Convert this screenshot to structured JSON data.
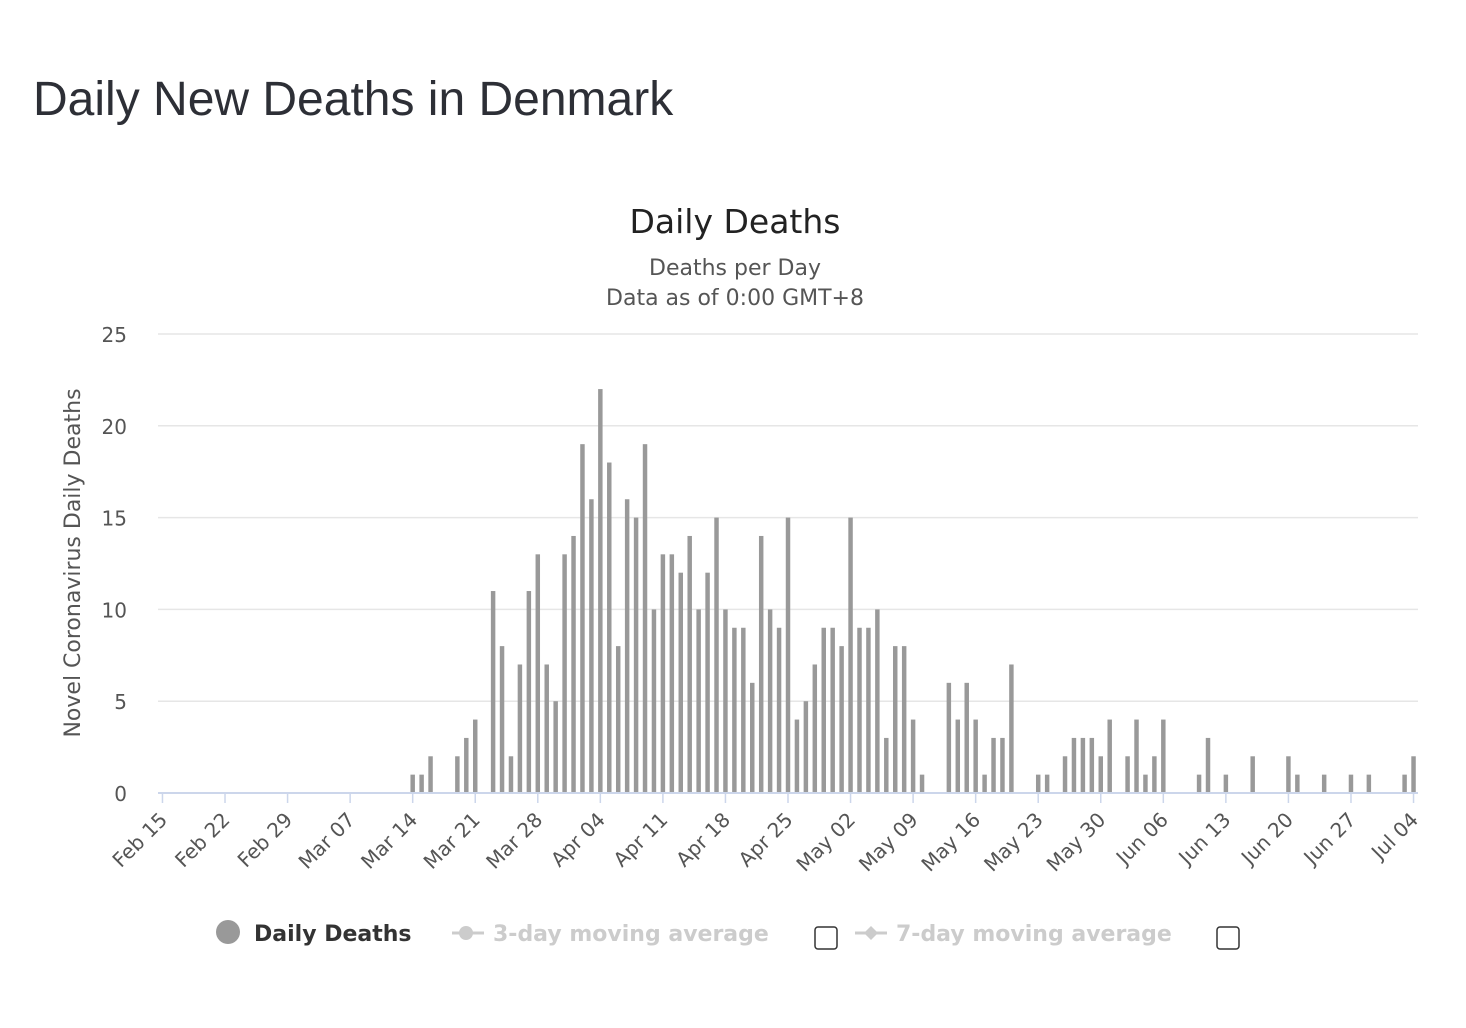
{
  "page": {
    "title": "Daily New Deaths in Denmark"
  },
  "chart_data": {
    "type": "bar",
    "title": "Daily Deaths",
    "subtitle": [
      "Deaths per Day",
      "Data as of 0:00 GMT+8"
    ],
    "ylabel": "Novel Coronavirus Daily Deaths",
    "xlabel": "",
    "ylim": [
      0,
      25
    ],
    "yticks": [
      "0",
      "5",
      "10",
      "15",
      "20",
      "25"
    ],
    "xtick_labels": [
      "Feb 15",
      "Feb 22",
      "Feb 29",
      "Mar 07",
      "Mar 14",
      "Mar 21",
      "Mar 28",
      "Apr 04",
      "Apr 11",
      "Apr 18",
      "Apr 25",
      "May 02",
      "May 09",
      "May 16",
      "May 23",
      "May 30",
      "Jun 06",
      "Jun 13",
      "Jun 20",
      "Jun 27",
      "Jul 04"
    ],
    "start_date": "Feb 15",
    "grid": true,
    "legend_position": "bottom",
    "colors": {
      "bar": "#999999",
      "grid": "#e6e6e6",
      "axis": "#ccd6eb",
      "legend_inactive": "#cccccc"
    },
    "series": [
      {
        "name": "Daily Deaths",
        "values": [
          0,
          0,
          0,
          0,
          0,
          0,
          0,
          0,
          0,
          0,
          0,
          0,
          0,
          0,
          0,
          0,
          0,
          0,
          0,
          0,
          0,
          0,
          0,
          0,
          0,
          0,
          0,
          0,
          1,
          1,
          2,
          0,
          0,
          2,
          3,
          4,
          0,
          11,
          8,
          2,
          7,
          11,
          13,
          7,
          5,
          13,
          14,
          19,
          16,
          22,
          18,
          8,
          16,
          15,
          19,
          10,
          13,
          13,
          12,
          14,
          10,
          12,
          15,
          10,
          9,
          9,
          6,
          14,
          10,
          9,
          15,
          4,
          5,
          7,
          9,
          9,
          8,
          15,
          9,
          9,
          10,
          3,
          8,
          8,
          4,
          1,
          0,
          0,
          6,
          4,
          6,
          4,
          1,
          3,
          3,
          7,
          0,
          0,
          1,
          1,
          0,
          2,
          3,
          3,
          3,
          2,
          4,
          0,
          2,
          4,
          1,
          2,
          4,
          0,
          0,
          0,
          1,
          3,
          0,
          1,
          0,
          0,
          2,
          0,
          0,
          0,
          2,
          1,
          0,
          0,
          1,
          0,
          0,
          1,
          0,
          1,
          0,
          0,
          0,
          1,
          2
        ]
      },
      {
        "name": "3-day moving average",
        "visible": false
      },
      {
        "name": "7-day moving average",
        "visible": false
      }
    ]
  }
}
